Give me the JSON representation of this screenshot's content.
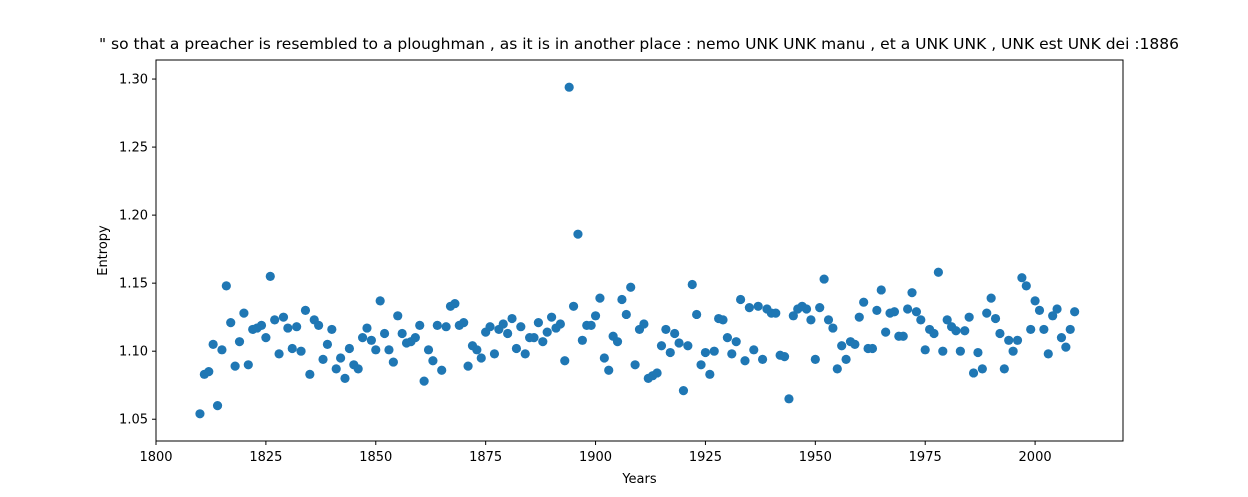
{
  "chart_data": {
    "type": "scatter",
    "title": "\" so that a preacher is resembled to a ploughman , as it is in another place : nemo UNK UNK manu , et a UNK UNK , UNK est UNK dei :1886",
    "xlabel": "Years",
    "ylabel": "Entropy",
    "xlim": [
      1800,
      2020
    ],
    "ylim": [
      1.034,
      1.314
    ],
    "x_ticks": [
      1800,
      1825,
      1850,
      1875,
      1900,
      1925,
      1950,
      1975,
      2000
    ],
    "y_ticks": [
      1.05,
      1.1,
      1.15,
      1.2,
      1.25,
      1.3
    ],
    "grid": false,
    "color": "#1f77b4",
    "points": [
      [
        1810,
        1.054
      ],
      [
        1811,
        1.083
      ],
      [
        1812,
        1.085
      ],
      [
        1813,
        1.105
      ],
      [
        1814,
        1.06
      ],
      [
        1815,
        1.101
      ],
      [
        1816,
        1.148
      ],
      [
        1817,
        1.121
      ],
      [
        1818,
        1.089
      ],
      [
        1819,
        1.107
      ],
      [
        1820,
        1.128
      ],
      [
        1821,
        1.09
      ],
      [
        1822,
        1.116
      ],
      [
        1823,
        1.117
      ],
      [
        1824,
        1.119
      ],
      [
        1825,
        1.11
      ],
      [
        1826,
        1.155
      ],
      [
        1827,
        1.123
      ],
      [
        1828,
        1.098
      ],
      [
        1829,
        1.125
      ],
      [
        1830,
        1.117
      ],
      [
        1831,
        1.102
      ],
      [
        1832,
        1.118
      ],
      [
        1833,
        1.1
      ],
      [
        1834,
        1.13
      ],
      [
        1835,
        1.083
      ],
      [
        1836,
        1.123
      ],
      [
        1837,
        1.119
      ],
      [
        1838,
        1.094
      ],
      [
        1839,
        1.105
      ],
      [
        1840,
        1.116
      ],
      [
        1841,
        1.087
      ],
      [
        1842,
        1.095
      ],
      [
        1843,
        1.08
      ],
      [
        1844,
        1.102
      ],
      [
        1845,
        1.09
      ],
      [
        1846,
        1.087
      ],
      [
        1847,
        1.11
      ],
      [
        1848,
        1.117
      ],
      [
        1849,
        1.108
      ],
      [
        1850,
        1.101
      ],
      [
        1851,
        1.137
      ],
      [
        1852,
        1.113
      ],
      [
        1853,
        1.101
      ],
      [
        1854,
        1.092
      ],
      [
        1855,
        1.126
      ],
      [
        1856,
        1.113
      ],
      [
        1857,
        1.106
      ],
      [
        1858,
        1.107
      ],
      [
        1859,
        1.11
      ],
      [
        1860,
        1.119
      ],
      [
        1861,
        1.078
      ],
      [
        1862,
        1.101
      ],
      [
        1863,
        1.093
      ],
      [
        1864,
        1.119
      ],
      [
        1865,
        1.086
      ],
      [
        1866,
        1.118
      ],
      [
        1867,
        1.133
      ],
      [
        1868,
        1.135
      ],
      [
        1869,
        1.119
      ],
      [
        1870,
        1.121
      ],
      [
        1871,
        1.089
      ],
      [
        1872,
        1.104
      ],
      [
        1873,
        1.101
      ],
      [
        1874,
        1.095
      ],
      [
        1875,
        1.114
      ],
      [
        1876,
        1.118
      ],
      [
        1877,
        1.098
      ],
      [
        1878,
        1.116
      ],
      [
        1879,
        1.12
      ],
      [
        1880,
        1.113
      ],
      [
        1881,
        1.124
      ],
      [
        1882,
        1.102
      ],
      [
        1883,
        1.118
      ],
      [
        1884,
        1.098
      ],
      [
        1885,
        1.11
      ],
      [
        1886,
        1.11
      ],
      [
        1887,
        1.121
      ],
      [
        1888,
        1.107
      ],
      [
        1889,
        1.114
      ],
      [
        1890,
        1.125
      ],
      [
        1891,
        1.117
      ],
      [
        1892,
        1.12
      ],
      [
        1893,
        1.093
      ],
      [
        1894,
        1.294
      ],
      [
        1895,
        1.133
      ],
      [
        1896,
        1.186
      ],
      [
        1897,
        1.108
      ],
      [
        1898,
        1.119
      ],
      [
        1899,
        1.119
      ],
      [
        1900,
        1.126
      ],
      [
        1901,
        1.139
      ],
      [
        1902,
        1.095
      ],
      [
        1903,
        1.086
      ],
      [
        1904,
        1.111
      ],
      [
        1905,
        1.107
      ],
      [
        1906,
        1.138
      ],
      [
        1907,
        1.127
      ],
      [
        1908,
        1.147
      ],
      [
        1909,
        1.09
      ],
      [
        1910,
        1.116
      ],
      [
        1911,
        1.12
      ],
      [
        1912,
        1.08
      ],
      [
        1913,
        1.082
      ],
      [
        1914,
        1.084
      ],
      [
        1915,
        1.104
      ],
      [
        1916,
        1.116
      ],
      [
        1917,
        1.099
      ],
      [
        1918,
        1.113
      ],
      [
        1919,
        1.106
      ],
      [
        1920,
        1.071
      ],
      [
        1921,
        1.104
      ],
      [
        1922,
        1.149
      ],
      [
        1923,
        1.127
      ],
      [
        1924,
        1.09
      ],
      [
        1925,
        1.099
      ],
      [
        1926,
        1.083
      ],
      [
        1927,
        1.1
      ],
      [
        1928,
        1.124
      ],
      [
        1929,
        1.123
      ],
      [
        1930,
        1.11
      ],
      [
        1931,
        1.098
      ],
      [
        1932,
        1.107
      ],
      [
        1933,
        1.138
      ],
      [
        1934,
        1.093
      ],
      [
        1935,
        1.132
      ],
      [
        1936,
        1.101
      ],
      [
        1937,
        1.133
      ],
      [
        1938,
        1.094
      ],
      [
        1939,
        1.131
      ],
      [
        1940,
        1.128
      ],
      [
        1941,
        1.128
      ],
      [
        1942,
        1.097
      ],
      [
        1943,
        1.096
      ],
      [
        1944,
        1.065
      ],
      [
        1945,
        1.126
      ],
      [
        1946,
        1.131
      ],
      [
        1947,
        1.133
      ],
      [
        1948,
        1.131
      ],
      [
        1949,
        1.123
      ],
      [
        1950,
        1.094
      ],
      [
        1951,
        1.132
      ],
      [
        1952,
        1.153
      ],
      [
        1953,
        1.123
      ],
      [
        1954,
        1.117
      ],
      [
        1955,
        1.087
      ],
      [
        1956,
        1.104
      ],
      [
        1957,
        1.094
      ],
      [
        1958,
        1.107
      ],
      [
        1959,
        1.105
      ],
      [
        1960,
        1.125
      ],
      [
        1961,
        1.136
      ],
      [
        1962,
        1.102
      ],
      [
        1963,
        1.102
      ],
      [
        1964,
        1.13
      ],
      [
        1965,
        1.145
      ],
      [
        1966,
        1.114
      ],
      [
        1967,
        1.128
      ],
      [
        1968,
        1.129
      ],
      [
        1969,
        1.111
      ],
      [
        1970,
        1.111
      ],
      [
        1971,
        1.131
      ],
      [
        1972,
        1.143
      ],
      [
        1973,
        1.129
      ],
      [
        1974,
        1.123
      ],
      [
        1975,
        1.101
      ],
      [
        1976,
        1.116
      ],
      [
        1977,
        1.113
      ],
      [
        1978,
        1.158
      ],
      [
        1979,
        1.1
      ],
      [
        1980,
        1.123
      ],
      [
        1981,
        1.118
      ],
      [
        1982,
        1.115
      ],
      [
        1983,
        1.1
      ],
      [
        1984,
        1.115
      ],
      [
        1985,
        1.125
      ],
      [
        1986,
        1.084
      ],
      [
        1987,
        1.099
      ],
      [
        1988,
        1.087
      ],
      [
        1989,
        1.128
      ],
      [
        1990,
        1.139
      ],
      [
        1991,
        1.124
      ],
      [
        1992,
        1.113
      ],
      [
        1993,
        1.087
      ],
      [
        1994,
        1.108
      ],
      [
        1995,
        1.1
      ],
      [
        1996,
        1.108
      ],
      [
        1997,
        1.154
      ],
      [
        1998,
        1.148
      ],
      [
        1999,
        1.116
      ],
      [
        2000,
        1.137
      ],
      [
        2001,
        1.13
      ],
      [
        2002,
        1.116
      ],
      [
        2003,
        1.098
      ],
      [
        2004,
        1.126
      ],
      [
        2005,
        1.131
      ],
      [
        2006,
        1.11
      ],
      [
        2007,
        1.103
      ],
      [
        2008,
        1.116
      ],
      [
        2009,
        1.129
      ]
    ]
  }
}
